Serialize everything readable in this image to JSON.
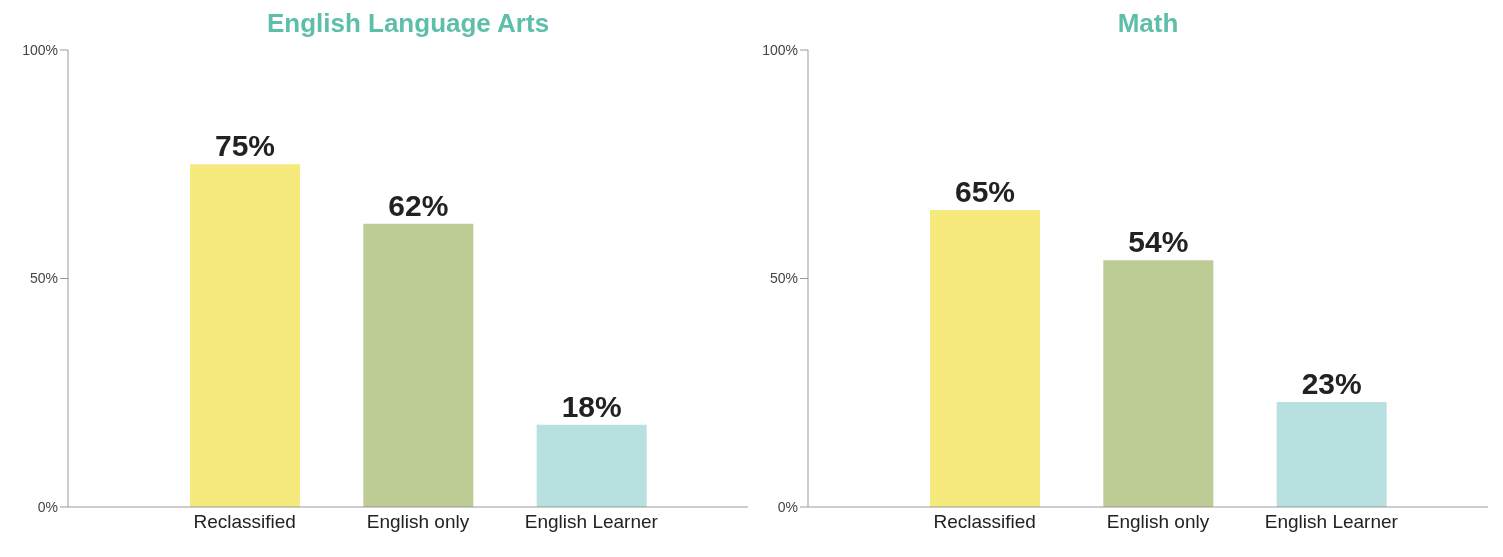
{
  "chart_data": [
    {
      "type": "bar",
      "title": "English Language Arts",
      "categories": [
        "Reclassified",
        "English only",
        "English Learner"
      ],
      "values": [
        75,
        62,
        18
      ],
      "colors": [
        "#f5ea7b",
        "#bccc94",
        "#b9e0e0"
      ],
      "value_labels": [
        "75%",
        "62%",
        "18%"
      ],
      "ylim": [
        0,
        100
      ],
      "yticks": [
        {
          "value": 0,
          "label": "0%"
        },
        {
          "value": 50,
          "label": "50%"
        },
        {
          "value": 100,
          "label": "100%"
        }
      ],
      "grid": false,
      "legend": false
    },
    {
      "type": "bar",
      "title": "Math",
      "categories": [
        "Reclassified",
        "English only",
        "English Learner"
      ],
      "values": [
        65,
        54,
        23
      ],
      "colors": [
        "#f5ea7b",
        "#bccc94",
        "#b9e0e0"
      ],
      "value_labels": [
        "65%",
        "54%",
        "23%"
      ],
      "ylim": [
        0,
        100
      ],
      "yticks": [
        {
          "value": 0,
          "label": "0%"
        },
        {
          "value": 50,
          "label": "50%"
        },
        {
          "value": 100,
          "label": "100%"
        }
      ],
      "grid": false,
      "legend": false
    }
  ]
}
